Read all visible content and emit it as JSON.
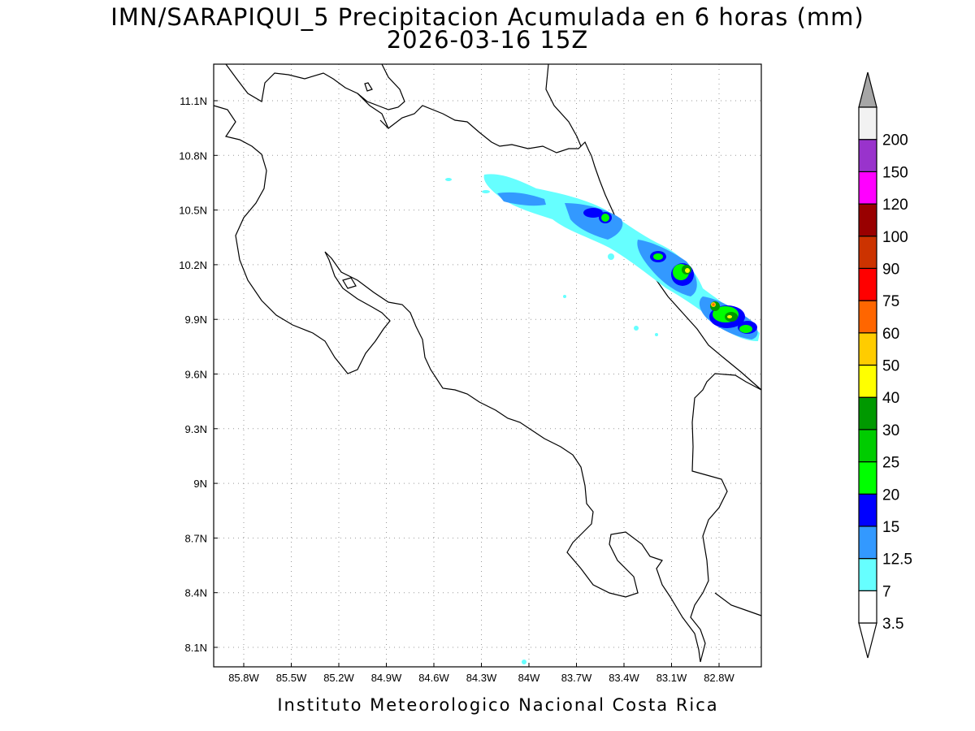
{
  "title": {
    "line1": "IMN/SARAPIQUI_5 Precipitacion Acumulada en 6 horas (mm)",
    "line2": "2026-03-16 15Z"
  },
  "footer": "Instituto Meteorologico Nacional Costa Rica",
  "map": {
    "lon_range": [
      -86.05,
      -82.6
    ],
    "lat_range": [
      8.02,
      11.3
    ],
    "grid": "dotted",
    "lat_ticks": [
      "11.1N",
      "10.8N",
      "10.5N",
      "10.2N",
      "9.9N",
      "9.6N",
      "9.3N",
      "9N",
      "8.7N",
      "8.4N",
      "8.1N"
    ],
    "lon_ticks": [
      "85.8W",
      "85.5W",
      "85.2W",
      "84.9W",
      "84.6W",
      "84.3W",
      "84W",
      "83.7W",
      "83.4W",
      "83.1W",
      "82.8W"
    ]
  },
  "colorbar": {
    "labels": [
      "3.5",
      "7",
      "12.5",
      "15",
      "20",
      "25",
      "30",
      "40",
      "50",
      "60",
      "75",
      "90",
      "100",
      "120",
      "150",
      "200"
    ],
    "colors": [
      "#ffffff",
      "#66ffff",
      "#3399ff",
      "#0000ff",
      "#00ff00",
      "#00cc00",
      "#009900",
      "#ffff00",
      "#ffcc00",
      "#ff6600",
      "#ff0000",
      "#cc3300",
      "#990000",
      "#ff00ff",
      "#9933cc",
      "#f2f2f2"
    ],
    "top_triangle_color": "#a6a6a6",
    "bottom_triangle_color": "#ffffff"
  }
}
